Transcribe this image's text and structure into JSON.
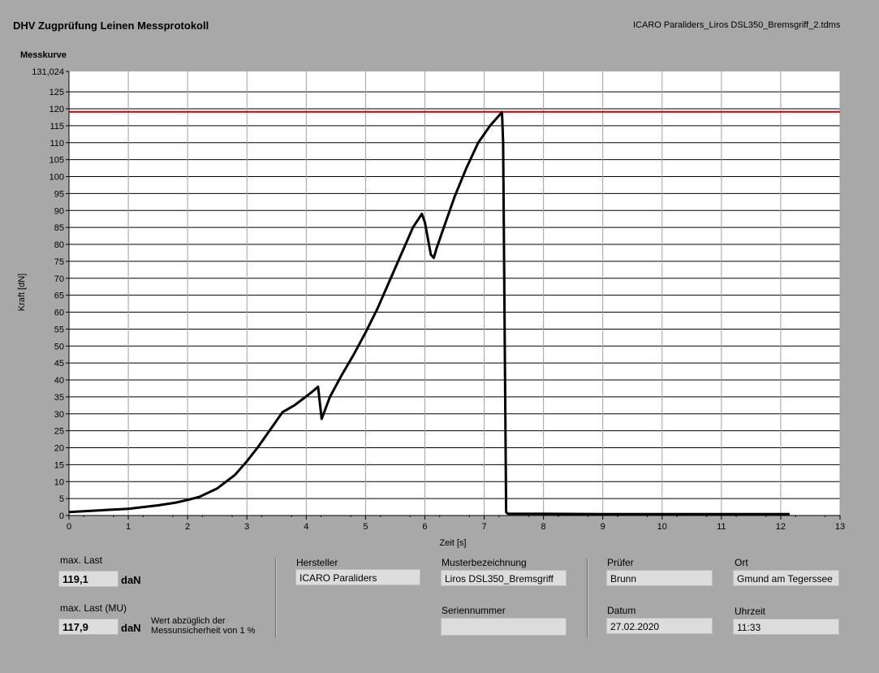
{
  "header": {
    "title": "DHV Zugprüfung Leinen Messprotokoll",
    "filename": "ICARO Paraliders_Liros DSL350_Bremsgriff_2.tdms",
    "graph_label": "Messkurve"
  },
  "chart_data": {
    "type": "line",
    "xlabel": "Zeit [s]",
    "ylabel": "Kraft [dN]",
    "xlim": [
      0,
      13
    ],
    "ylim": [
      0,
      131.024
    ],
    "x_ticks": [
      "0",
      "1",
      "2",
      "3",
      "4",
      "5",
      "6",
      "7",
      "8",
      "9",
      "10",
      "11",
      "12",
      "13"
    ],
    "y_ticks": [
      "0",
      "5",
      "10",
      "15",
      "20",
      "25",
      "30",
      "35",
      "40",
      "45",
      "50",
      "55",
      "60",
      "65",
      "70",
      "75",
      "80",
      "85",
      "90",
      "95",
      "100",
      "105",
      "110",
      "115",
      "120",
      "125"
    ],
    "y_max_label": "131,024",
    "grid": true,
    "reference_line": {
      "y": 119.1,
      "color": "#c00000"
    },
    "series": [
      {
        "color": "#000000",
        "x": [
          0,
          0.5,
          1.0,
          1.5,
          1.8,
          2.0,
          2.2,
          2.5,
          2.8,
          3.0,
          3.2,
          3.4,
          3.6,
          3.8,
          3.95,
          4.1,
          4.2,
          4.26,
          4.4,
          4.6,
          4.8,
          5.0,
          5.2,
          5.4,
          5.6,
          5.8,
          5.95,
          6.0,
          6.1,
          6.15,
          6.2,
          6.3,
          6.5,
          6.7,
          6.9,
          7.1,
          7.3,
          7.32,
          7.37,
          7.4,
          8,
          9,
          10,
          11,
          12.15
        ],
        "y": [
          1,
          1.5,
          2,
          3,
          3.8,
          4.6,
          5.5,
          8,
          12,
          16,
          20.5,
          25.5,
          30.5,
          32.5,
          34.5,
          36.5,
          38,
          28.5,
          35,
          41.5,
          47.5,
          54,
          61,
          69,
          77,
          85,
          89,
          86.5,
          77,
          76,
          79,
          84,
          94,
          102.5,
          110,
          115,
          119,
          110,
          1,
          0.5,
          0.5,
          0.4,
          0.4,
          0.4,
          0.4
        ]
      }
    ]
  },
  "bottom": {
    "max_last_label": "max. Last",
    "max_last_value": "119,1",
    "max_last_unit": "daN",
    "max_last_mu_label": "max. Last (MU)",
    "max_last_mu_value": "117,9",
    "max_last_mu_unit": "daN",
    "mu_note": "Wert abzüglich der Messunsicherheit von 1 %",
    "hersteller_label": "Hersteller",
    "hersteller_value": "ICARO Paraliders",
    "musterbezeichnung_label": "Musterbezeichnung",
    "musterbezeichnung_value": "Liros DSL350_Bremsgriff",
    "seriennummer_label": "Seriennummer",
    "seriennummer_value": "",
    "pruefer_label": "Prüfer",
    "pruefer_value": "Brunn",
    "ort_label": "Ort",
    "ort_value": "Gmund am Tegerssee",
    "datum_label": "Datum",
    "datum_value": "27.02.2020",
    "uhrzeit_label": "Uhrzeit",
    "uhrzeit_value": "11:33"
  }
}
